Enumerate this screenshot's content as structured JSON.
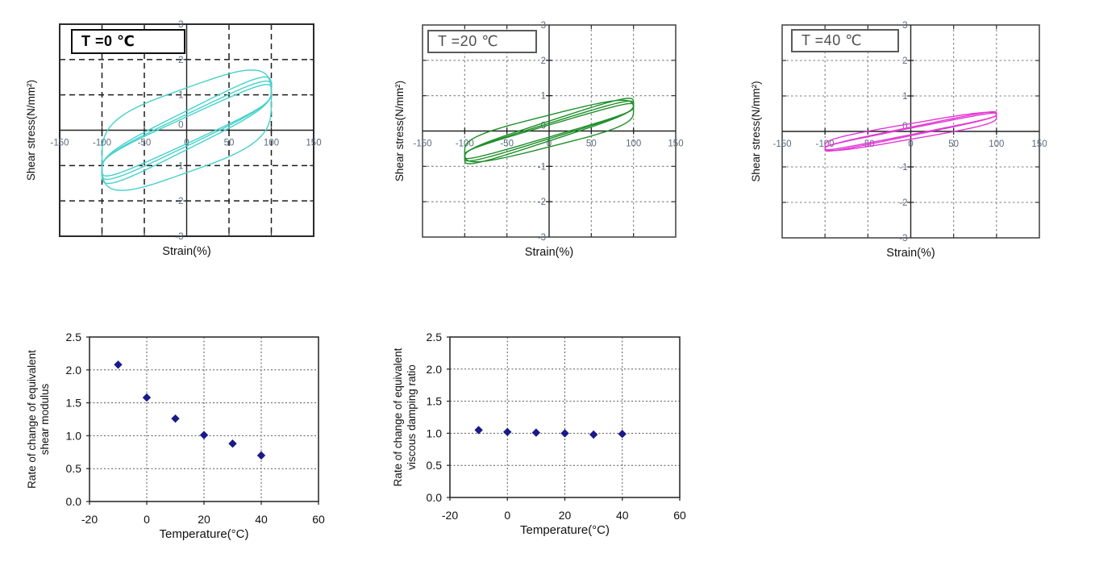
{
  "page": {
    "background": "#ffffff"
  },
  "chart_data": [
    {
      "type": "line",
      "subtype": "hysteresis-loops",
      "title": "T =0 ℃",
      "title_emphasis": "bold",
      "xlabel": "Strain(%)",
      "ylabel": "Shear stress(N/mm²)",
      "xlim": [
        -150,
        150
      ],
      "ylim": [
        -3,
        3
      ],
      "xticks": [
        -150,
        -100,
        -50,
        0,
        50,
        100,
        150
      ],
      "yticks": [
        -3,
        -2,
        -1,
        0,
        1,
        2,
        3
      ],
      "x_grid": [
        -100,
        -50,
        50,
        100
      ],
      "y_grid": [
        -2,
        -1,
        1,
        2
      ],
      "grid_style": "dashed-black",
      "line_color": "#44d1cb",
      "strain_amplitude": 100,
      "loops": [
        {
          "amp": 100,
          "slope": 0.0085,
          "thick": 1.2,
          "p": 0.55
        },
        {
          "amp": 100,
          "slope": 0.012,
          "thick": 0.55,
          "p": 0.5
        },
        {
          "amp": 100,
          "slope": 0.0115,
          "thick": 0.45,
          "p": 0.5
        },
        {
          "amp": 100,
          "slope": 0.011,
          "thick": 0.38,
          "p": 0.5
        }
      ],
      "peak_stress_approx": 1.8
    },
    {
      "type": "line",
      "subtype": "hysteresis-loops",
      "title": "T =20 ℃",
      "title_emphasis": "normal",
      "xlabel": "Strain(%)",
      "ylabel": "Shear stress(N/mm²)",
      "xlim": [
        -150,
        150
      ],
      "ylim": [
        -3,
        3
      ],
      "xticks": [
        -150,
        -100,
        -50,
        0,
        50,
        100,
        150
      ],
      "yticks": [
        -3,
        -2,
        -1,
        0,
        1,
        2,
        3
      ],
      "x_grid": [
        -100,
        -50,
        50,
        100
      ],
      "y_grid": [
        -2,
        -1,
        1,
        2
      ],
      "grid_style": "dotted-gray",
      "line_color": "#1f8f2a",
      "strain_amplitude": 100,
      "loops": [
        {
          "amp": 100,
          "slope": 0.006,
          "thick": 0.45,
          "p": 0.55
        },
        {
          "amp": 100,
          "slope": 0.0078,
          "thick": 0.28,
          "p": 0.5
        },
        {
          "amp": 100,
          "slope": 0.0074,
          "thick": 0.22,
          "p": 0.5
        },
        {
          "amp": 100,
          "slope": 0.007,
          "thick": 0.17,
          "p": 0.5
        }
      ],
      "peak_stress_approx": 0.95
    },
    {
      "type": "line",
      "subtype": "hysteresis-loops",
      "title": "T =40 ℃",
      "title_emphasis": "normal",
      "xlabel": "Strain(%)",
      "ylabel": "Shear stress(N/mm²)",
      "xlim": [
        -150,
        150
      ],
      "ylim": [
        -3,
        3
      ],
      "xticks": [
        -150,
        -100,
        -50,
        0,
        50,
        100,
        150
      ],
      "yticks": [
        -3,
        -2,
        -1,
        0,
        1,
        2,
        3
      ],
      "x_grid": [
        -100,
        -50,
        50,
        100
      ],
      "y_grid": [
        -2,
        -1,
        1,
        2
      ],
      "grid_style": "dotted-gray",
      "line_color": "#e436d6",
      "strain_amplitude": 100,
      "loops": [
        {
          "amp": 100,
          "slope": 0.0042,
          "thick": 0.22,
          "p": 0.55
        },
        {
          "amp": 100,
          "slope": 0.005,
          "thick": 0.12,
          "p": 0.5
        },
        {
          "amp": 100,
          "slope": 0.0048,
          "thick": 0.09,
          "p": 0.5
        }
      ],
      "peak_stress_approx": 0.55
    },
    {
      "type": "scatter",
      "title": "",
      "xlabel": "Temperature(°C)",
      "ylabel": "Rate of change of equivalent shear modulus",
      "ylabel_lines": [
        "Rate of change of equivalent",
        "shear modulus"
      ],
      "xlim": [
        -20,
        60
      ],
      "ylim": [
        0,
        2.5
      ],
      "xticks": [
        "-20",
        "0",
        "20",
        "40",
        "60"
      ],
      "xtick_values": [
        -20,
        0,
        20,
        40,
        60
      ],
      "yticks": [
        "0.0",
        "0.5",
        "1.0",
        "1.5",
        "2.0",
        "2.5"
      ],
      "ytick_values": [
        0,
        0.5,
        1.0,
        1.5,
        2.0,
        2.5
      ],
      "x_grid": [
        0,
        20,
        40
      ],
      "y_grid": [
        0.5,
        1.0,
        1.5,
        2.0
      ],
      "grid_style": "dotted",
      "marker": "diamond",
      "marker_color": "#1a1a8a",
      "points": [
        [
          -10,
          2.08
        ],
        [
          0,
          1.58
        ],
        [
          10,
          1.26
        ],
        [
          20,
          1.01
        ],
        [
          30,
          0.88
        ],
        [
          40,
          0.7
        ]
      ]
    },
    {
      "type": "scatter",
      "title": "",
      "xlabel": "Temperature(°C)",
      "ylabel": "Rate of change of equivalent viscous damping ratio",
      "ylabel_lines": [
        "Rate of change of equivalent",
        "viscous damping ratio"
      ],
      "xlim": [
        -20,
        60
      ],
      "ylim": [
        0,
        2.5
      ],
      "xticks": [
        "-20",
        "0",
        "20",
        "40",
        "60"
      ],
      "xtick_values": [
        -20,
        0,
        20,
        40,
        60
      ],
      "yticks": [
        "0.0",
        "0.5",
        "1.0",
        "1.5",
        "2.0",
        "2.5"
      ],
      "ytick_values": [
        0,
        0.5,
        1.0,
        1.5,
        2.0,
        2.5
      ],
      "x_grid": [
        0,
        20,
        40
      ],
      "y_grid": [
        0.5,
        1.0,
        1.5,
        2.0
      ],
      "grid_style": "dotted",
      "marker": "diamond",
      "marker_color": "#1a1a8a",
      "points": [
        [
          -10,
          1.05
        ],
        [
          0,
          1.02
        ],
        [
          10,
          1.01
        ],
        [
          20,
          1.0
        ],
        [
          30,
          0.98
        ],
        [
          40,
          0.99
        ]
      ]
    }
  ],
  "colors": {
    "loop_t0": "#44d1cb",
    "loop_t20": "#1f8f2a",
    "loop_t40": "#e436d6",
    "scatter_marker": "#1a1a8a",
    "axis_tick_text_top": "#5b6b7f",
    "axis_text_bottom": "#111111"
  }
}
